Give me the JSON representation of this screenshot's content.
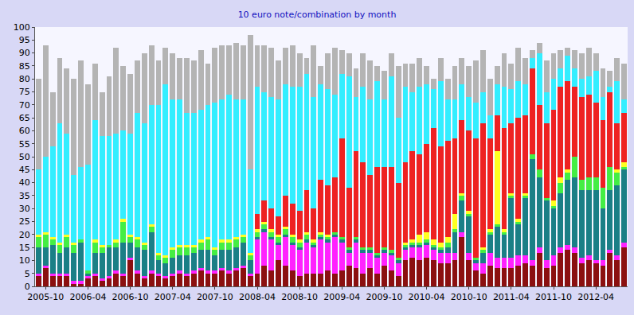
{
  "chart_data": {
    "type": "bar",
    "title": "10 euro note/combination by month",
    "stacked": true,
    "grid": false,
    "ylim": [
      0,
      100
    ],
    "yticks": [
      0,
      5,
      10,
      15,
      20,
      25,
      30,
      35,
      40,
      45,
      50,
      55,
      60,
      65,
      70,
      75,
      80,
      85,
      90,
      95,
      100
    ],
    "categories": [
      null,
      "2005-10",
      null,
      null,
      null,
      null,
      null,
      "2006-04",
      null,
      null,
      null,
      null,
      null,
      "2006-10",
      null,
      null,
      null,
      null,
      null,
      "2007-04",
      null,
      null,
      null,
      null,
      null,
      "2007-10",
      null,
      null,
      null,
      null,
      null,
      "2008-04",
      null,
      null,
      null,
      null,
      null,
      "2008-10",
      null,
      null,
      null,
      null,
      null,
      "2009-04",
      null,
      null,
      null,
      null,
      null,
      "2009-10",
      null,
      null,
      null,
      null,
      null,
      "2010-04",
      null,
      null,
      null,
      null,
      null,
      "2010-10",
      null,
      null,
      null,
      null,
      null,
      "2011-04",
      null,
      null,
      null,
      null,
      null,
      "2011-10",
      null,
      null,
      null,
      null,
      null,
      "2012-04",
      null,
      null,
      null,
      null
    ],
    "series": [
      {
        "color": "#8b1010",
        "values": [
          4,
          7,
          4,
          4,
          4,
          1,
          1,
          3,
          4,
          2,
          3,
          5,
          4,
          10,
          5,
          3,
          5,
          4,
          3,
          4,
          5,
          4,
          5,
          6,
          5,
          5,
          6,
          5,
          6,
          7,
          4,
          5,
          8,
          6,
          10,
          8,
          6,
          4,
          5,
          5,
          5,
          6,
          5,
          6,
          8,
          7,
          5,
          7,
          5,
          8,
          6,
          4,
          10,
          11,
          10,
          11,
          10,
          9,
          9,
          10,
          19,
          10,
          6,
          5,
          8,
          7,
          7,
          7,
          8,
          9,
          8,
          13,
          7,
          8,
          13,
          14,
          13,
          9,
          10,
          9,
          8,
          13,
          10,
          15
        ]
      },
      {
        "color": "#ff22ff",
        "values": [
          1,
          1,
          1,
          1,
          1,
          1,
          1,
          1,
          1,
          1,
          1,
          1,
          1,
          1,
          1,
          1,
          1,
          1,
          1,
          1,
          1,
          1,
          1,
          1,
          1,
          1,
          1,
          1,
          1,
          1,
          1,
          13,
          13,
          12,
          6,
          11,
          10,
          10,
          12,
          10,
          13,
          11,
          14,
          11,
          5,
          10,
          8,
          6,
          6,
          5,
          6,
          5,
          4,
          4,
          5,
          5,
          4,
          4,
          4,
          3,
          2,
          3,
          3,
          4,
          5,
          4,
          4,
          4,
          4,
          3,
          2,
          2,
          3,
          4,
          2,
          2,
          2,
          2,
          2,
          1,
          2,
          1,
          2,
          2
        ]
      },
      {
        "color": "#1a7f86",
        "values": [
          10,
          7,
          11,
          8,
          10,
          11,
          15,
          1,
          8,
          10,
          11,
          9,
          12,
          6,
          9,
          10,
          15,
          5,
          5,
          6,
          6,
          7,
          7,
          7,
          8,
          6,
          7,
          8,
          8,
          9,
          5,
          1,
          1,
          1,
          1,
          1,
          1,
          1,
          1,
          1,
          1,
          1,
          1,
          1,
          1,
          1,
          1,
          1,
          1,
          1,
          1,
          1,
          1,
          1,
          1,
          1,
          1,
          1,
          2,
          8,
          12,
          14,
          1,
          4,
          7,
          12,
          9,
          23,
          12,
          22,
          39,
          27,
          23,
          18,
          21,
          25,
          27,
          26,
          25,
          27,
          20,
          23,
          27,
          28
        ]
      },
      {
        "color": "#44ee44",
        "values": [
          4,
          5,
          2,
          3,
          4,
          3,
          1,
          1,
          4,
          2,
          1,
          2,
          8,
          2,
          3,
          2,
          2,
          2,
          2,
          3,
          3,
          3,
          2,
          3,
          4,
          2,
          3,
          3,
          3,
          2,
          2,
          2,
          2,
          2,
          2,
          2,
          2,
          2,
          2,
          1,
          1,
          1,
          1,
          1,
          1,
          1,
          1,
          1,
          1,
          1,
          1,
          1,
          1,
          1,
          1,
          1,
          1,
          1,
          2,
          1,
          2,
          1,
          1,
          1,
          1,
          1,
          1,
          1,
          1,
          1,
          2,
          3,
          1,
          1,
          4,
          3,
          8,
          4,
          5,
          5,
          8,
          9,
          5,
          1
        ]
      },
      {
        "color": "#ffff22",
        "values": [
          1,
          1,
          1,
          1,
          1,
          1,
          0,
          0,
          1,
          1,
          0,
          1,
          1,
          1,
          1,
          1,
          1,
          1,
          1,
          1,
          1,
          1,
          1,
          1,
          1,
          1,
          1,
          1,
          1,
          1,
          1,
          1,
          1,
          1,
          1,
          1,
          1,
          1,
          1,
          1,
          1,
          1,
          0,
          0,
          0,
          0,
          0,
          0,
          0,
          0,
          0,
          0,
          1,
          1,
          3,
          3,
          2,
          2,
          2,
          6,
          1,
          1,
          0,
          1,
          1,
          28,
          1,
          1,
          1,
          1,
          0,
          0,
          0,
          2,
          2,
          1,
          0,
          0,
          0,
          0,
          0,
          0,
          1,
          2
        ]
      },
      {
        "color": "#ee2222",
        "values": [
          0,
          0,
          0,
          0,
          0,
          0,
          0,
          0,
          0,
          0,
          0,
          0,
          0,
          0,
          0,
          0,
          0,
          0,
          0,
          0,
          0,
          0,
          0,
          0,
          0,
          0,
          0,
          0,
          0,
          0,
          0,
          6,
          8,
          8,
          7,
          12,
          12,
          11,
          16,
          12,
          20,
          19,
          21,
          38,
          23,
          33,
          33,
          28,
          33,
          31,
          32,
          29,
          31,
          34,
          31,
          34,
          43,
          37,
          37,
          29,
          28,
          31,
          46,
          48,
          35,
          14,
          39,
          27,
          39,
          30,
          33,
          25,
          29,
          35,
          35,
          34,
          27,
          32,
          32,
          29,
          26,
          29,
          18,
          19
        ]
      },
      {
        "color": "#33eeff",
        "values": [
          25,
          29,
          35,
          46,
          39,
          26,
          28,
          41,
          46,
          42,
          42,
          41,
          34,
          39,
          48,
          46,
          46,
          57,
          66,
          57,
          56,
          51,
          51,
          50,
          51,
          56,
          54,
          56,
          53,
          52,
          32,
          49,
          42,
          43,
          45,
          43,
          45,
          48,
          45,
          43,
          37,
          37,
          32,
          25,
          43,
          21,
          29,
          29,
          33,
          26,
          35,
          25,
          29,
          23,
          26,
          23,
          15,
          25,
          16,
          15,
          14,
          13,
          14,
          12,
          9,
          12,
          16,
          13,
          14,
          12,
          4,
          20,
          12,
          12,
          7,
          10,
          7,
          7,
          7,
          12,
          9,
          2,
          16,
          5
        ]
      },
      {
        "color": "#b4b4b4",
        "values": [
          35,
          43,
          21,
          25,
          25,
          37,
          41,
          31,
          22,
          17,
          23,
          33,
          25,
          23,
          20,
          27,
          23,
          17,
          14,
          18,
          16,
          21,
          20,
          23,
          16,
          21,
          21,
          19,
          22,
          21,
          52,
          16,
          18,
          19,
          15,
          14,
          16,
          13,
          6,
          20,
          7,
          14,
          18,
          9,
          9,
          11,
          13,
          15,
          6,
          11,
          9,
          20,
          9,
          11,
          11,
          7,
          4,
          9,
          8,
          13,
          10,
          12,
          16,
          16,
          14,
          7,
          13,
          10,
          13,
          10,
          3,
          4,
          12,
          10,
          7,
          3,
          7,
          10,
          11,
          7,
          11,
          6,
          9,
          14
        ]
      }
    ]
  }
}
